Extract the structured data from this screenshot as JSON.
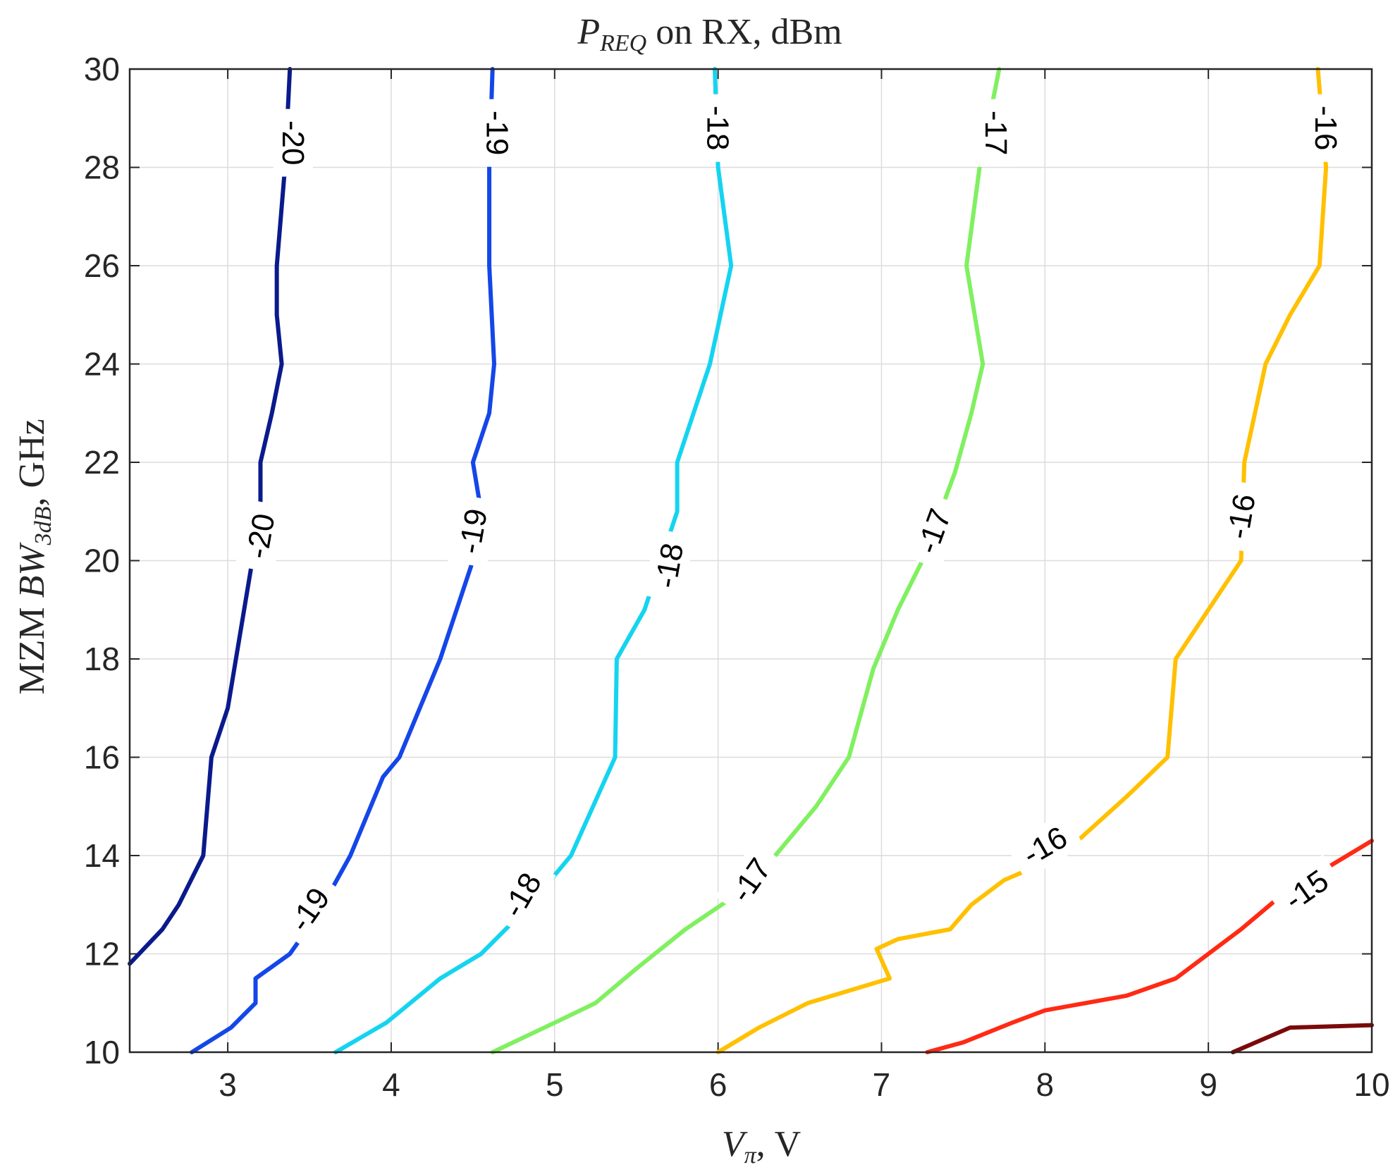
{
  "chart_data": {
    "type": "contour",
    "title": {
      "main": "P",
      "sub": "REQ",
      "rest": " on RX, dBm"
    },
    "xlabel": {
      "main": "V",
      "sub": "π",
      "rest": ", V"
    },
    "ylabel": {
      "prefix": "MZM ",
      "main": "BW",
      "sub": "3dB",
      "rest": ", GHz"
    },
    "xlim": [
      2.4,
      10
    ],
    "ylim": [
      10,
      30
    ],
    "xticks": [
      3,
      4,
      5,
      6,
      7,
      8,
      9,
      10
    ],
    "yticks": [
      10,
      12,
      14,
      16,
      18,
      20,
      22,
      24,
      26,
      28,
      30
    ],
    "grid": true,
    "levels": [
      {
        "level": -20,
        "label": "-20",
        "color": "#0a1a8c",
        "points": [
          [
            2.4,
            11.8
          ],
          [
            2.6,
            12.5
          ],
          [
            2.7,
            13
          ],
          [
            2.85,
            14
          ],
          [
            2.9,
            16
          ],
          [
            3.0,
            17
          ],
          [
            3.05,
            18
          ],
          [
            3.1,
            19
          ],
          [
            3.15,
            20
          ],
          [
            3.2,
            21
          ],
          [
            3.2,
            22
          ],
          [
            3.27,
            23
          ],
          [
            3.33,
            24
          ],
          [
            3.3,
            25
          ],
          [
            3.3,
            26
          ],
          [
            3.35,
            28
          ],
          [
            3.38,
            30
          ]
        ],
        "labels": [
          {
            "x": 3.2,
            "y": 20.5,
            "angle": -80
          },
          {
            "x": 3.4,
            "y": 28.5,
            "angle": 90
          }
        ]
      },
      {
        "level": -19,
        "label": "-19",
        "color": "#1446e8",
        "points": [
          [
            2.78,
            10
          ],
          [
            3.02,
            10.5
          ],
          [
            3.17,
            11
          ],
          [
            3.17,
            11.5
          ],
          [
            3.38,
            12
          ],
          [
            3.55,
            12.8
          ],
          [
            3.75,
            14
          ],
          [
            3.95,
            15.6
          ],
          [
            4.05,
            16
          ],
          [
            4.3,
            18
          ],
          [
            4.5,
            20
          ],
          [
            4.55,
            21
          ],
          [
            4.5,
            22
          ],
          [
            4.6,
            23
          ],
          [
            4.63,
            24
          ],
          [
            4.6,
            26
          ],
          [
            4.6,
            28
          ],
          [
            4.62,
            30
          ]
        ],
        "labels": [
          {
            "x": 3.5,
            "y": 12.9,
            "angle": -55
          },
          {
            "x": 4.5,
            "y": 20.6,
            "angle": -80
          },
          {
            "x": 4.65,
            "y": 28.7,
            "angle": 90
          }
        ]
      },
      {
        "level": -18,
        "label": "-18",
        "color": "#14d4f0",
        "points": [
          [
            3.66,
            10
          ],
          [
            3.97,
            10.6
          ],
          [
            4.3,
            11.5
          ],
          [
            4.55,
            12
          ],
          [
            4.85,
            13
          ],
          [
            5.1,
            14
          ],
          [
            5.37,
            16
          ],
          [
            5.38,
            18
          ],
          [
            5.55,
            19
          ],
          [
            5.75,
            21
          ],
          [
            5.75,
            22
          ],
          [
            5.95,
            24
          ],
          [
            6.08,
            26
          ],
          [
            6.0,
            28
          ],
          [
            5.98,
            30
          ]
        ],
        "labels": [
          {
            "x": 4.8,
            "y": 13.2,
            "angle": -60
          },
          {
            "x": 5.7,
            "y": 19.9,
            "angle": -80
          },
          {
            "x": 6.0,
            "y": 28.8,
            "angle": 90
          }
        ]
      },
      {
        "level": -17,
        "label": "-17",
        "color": "#80f060",
        "points": [
          [
            4.62,
            10
          ],
          [
            5.0,
            10.6
          ],
          [
            5.25,
            11
          ],
          [
            5.5,
            11.7
          ],
          [
            5.8,
            12.5
          ],
          [
            6.2,
            13.4
          ],
          [
            6.4,
            14.2
          ],
          [
            6.6,
            15
          ],
          [
            6.8,
            16
          ],
          [
            6.95,
            17.8
          ],
          [
            7.1,
            19
          ],
          [
            7.25,
            20
          ],
          [
            7.45,
            21.8
          ],
          [
            7.55,
            23
          ],
          [
            7.62,
            24
          ],
          [
            7.52,
            26
          ],
          [
            7.6,
            28
          ],
          [
            7.72,
            30
          ]
        ],
        "labels": [
          {
            "x": 6.2,
            "y": 13.5,
            "angle": -55
          },
          {
            "x": 7.32,
            "y": 20.6,
            "angle": -70
          },
          {
            "x": 7.7,
            "y": 28.7,
            "angle": 90
          }
        ]
      },
      {
        "level": -16,
        "label": "-16",
        "color": "#ffc000",
        "points": [
          [
            6.0,
            10
          ],
          [
            6.25,
            10.5
          ],
          [
            6.55,
            11
          ],
          [
            7.05,
            11.5
          ],
          [
            6.97,
            12.1
          ],
          [
            7.1,
            12.3
          ],
          [
            7.42,
            12.5
          ],
          [
            7.55,
            13
          ],
          [
            7.75,
            13.5
          ],
          [
            8.1,
            14
          ],
          [
            8.5,
            15.2
          ],
          [
            8.75,
            16
          ],
          [
            8.8,
            18
          ],
          [
            9.0,
            19
          ],
          [
            9.2,
            20
          ],
          [
            9.22,
            22
          ],
          [
            9.35,
            24
          ],
          [
            9.5,
            25
          ],
          [
            9.68,
            26
          ],
          [
            9.72,
            28
          ],
          [
            9.67,
            30
          ]
        ],
        "labels": [
          {
            "x": 8.0,
            "y": 14.2,
            "angle": -30
          },
          {
            "x": 9.2,
            "y": 20.9,
            "angle": -80
          },
          {
            "x": 9.72,
            "y": 28.8,
            "angle": 90
          }
        ]
      },
      {
        "level": -15,
        "label": "-15",
        "color": "#ff2a14",
        "points": [
          [
            7.28,
            10
          ],
          [
            7.5,
            10.2
          ],
          [
            7.8,
            10.6
          ],
          [
            8.0,
            10.85
          ],
          [
            8.5,
            11.15
          ],
          [
            8.8,
            11.5
          ],
          [
            9.0,
            12
          ],
          [
            9.2,
            12.5
          ],
          [
            9.45,
            13.2
          ],
          [
            9.75,
            13.8
          ],
          [
            10,
            14.3
          ]
        ],
        "labels": [
          {
            "x": 9.6,
            "y": 13.3,
            "angle": -35
          }
        ]
      },
      {
        "level": -14,
        "label": "",
        "color": "#7a0a0a",
        "points": [
          [
            9.15,
            10
          ],
          [
            9.5,
            10.5
          ],
          [
            10,
            10.55
          ]
        ],
        "labels": []
      }
    ]
  }
}
